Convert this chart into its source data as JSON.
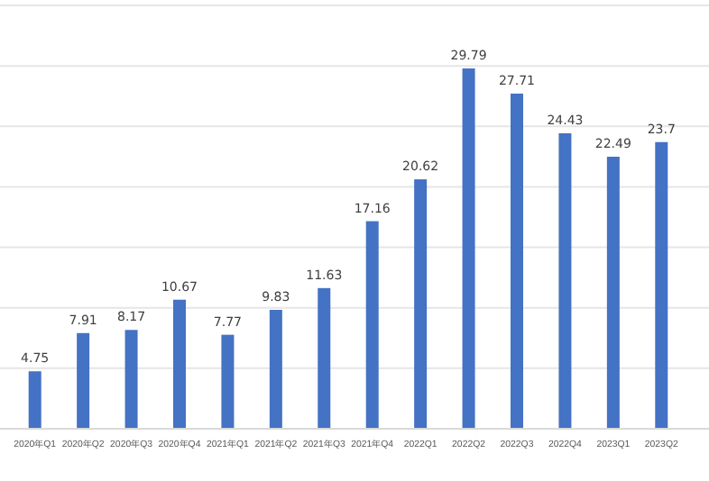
{
  "chart_data": {
    "type": "bar",
    "categories": [
      "2020年Q1",
      "2020年Q2",
      "2020年Q3",
      "2020年Q4",
      "2021年Q1",
      "2021年Q2",
      "2021年Q3",
      "2021年Q4",
      "2022Q1",
      "2022Q2",
      "2022Q3",
      "2022Q4",
      "2023Q1",
      "2023Q2"
    ],
    "values": [
      4.75,
      7.91,
      8.17,
      10.67,
      7.77,
      9.83,
      11.63,
      17.16,
      20.62,
      29.79,
      27.71,
      24.43,
      22.49,
      23.7
    ],
    "color": "#4472c4",
    "ylim": [
      0,
      35
    ],
    "yticks": [
      {
        "value": 0,
        "label": null
      },
      {
        "value": 5,
        "label": null
      },
      {
        "value": 10,
        "label": null
      },
      {
        "value": 15,
        "label": null
      },
      {
        "value": 20,
        "label": null
      },
      {
        "value": 25,
        "label": null
      },
      {
        "value": 30,
        "label": null
      },
      {
        "value": 35,
        "label": null
      }
    ],
    "grid": "y",
    "tick_labels": "x",
    "data_labels": true
  }
}
